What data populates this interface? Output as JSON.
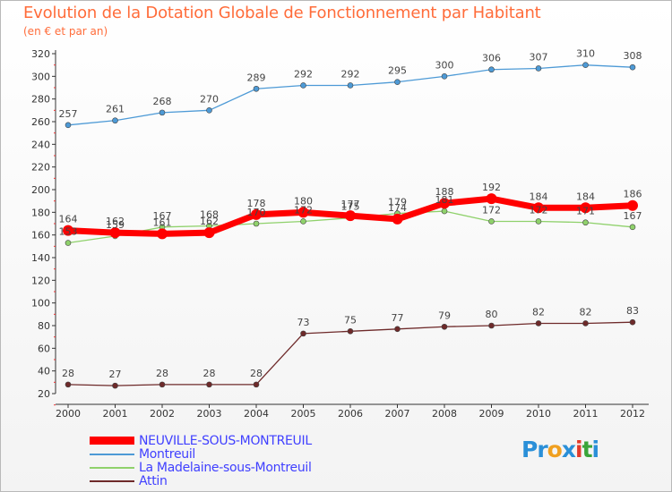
{
  "chart_data": {
    "type": "line",
    "title": "Evolution de la Dotation Globale de Fonctionnement par Habitant",
    "subtitle": "(en € et par an)",
    "xlabel": "",
    "ylabel": "",
    "ylim": [
      20,
      320
    ],
    "y_ticks": [
      "20",
      "40",
      "60",
      "80",
      "100",
      "120",
      "140",
      "160",
      "180",
      "200",
      "220",
      "240",
      "260",
      "280",
      "300",
      "320"
    ],
    "categories": [
      "2000",
      "2001",
      "2002",
      "2003",
      "2004",
      "2005",
      "2006",
      "2007",
      "2008",
      "2009",
      "2010",
      "2011",
      "2012"
    ],
    "grid": false,
    "series": [
      {
        "name": "NEUVILLE-SOUS-MONTREUIL",
        "color": "#ff0000",
        "values": [
          164,
          162,
          161,
          162,
          178,
          180,
          177,
          174,
          188,
          192,
          184,
          184,
          186
        ]
      },
      {
        "name": "Montreuil",
        "color": "#4d9ad6",
        "values": [
          257,
          261,
          268,
          270,
          289,
          292,
          292,
          295,
          300,
          306,
          307,
          310,
          308
        ]
      },
      {
        "name": "La Madelaine-sous-Montreuil",
        "color": "#8fd16b",
        "values": [
          153,
          159,
          167,
          168,
          170,
          172,
          175,
          179,
          181,
          172,
          172,
          171,
          167
        ]
      },
      {
        "name": "Attin",
        "color": "#6e2a2a",
        "values": [
          28,
          27,
          28,
          28,
          28,
          73,
          75,
          77,
          79,
          80,
          82,
          82,
          83
        ]
      }
    ]
  },
  "logo": {
    "text_parts": [
      {
        "t": "Pr",
        "color": "#2a8fd8"
      },
      {
        "t": "o",
        "color": "#f0a020"
      },
      {
        "t": "x",
        "color": "#2a8fd8"
      },
      {
        "t": "i",
        "color": "#e23b2b"
      },
      {
        "t": "t",
        "color": "#3aa53a"
      },
      {
        "t": "i",
        "color": "#2a8fd8"
      }
    ]
  }
}
